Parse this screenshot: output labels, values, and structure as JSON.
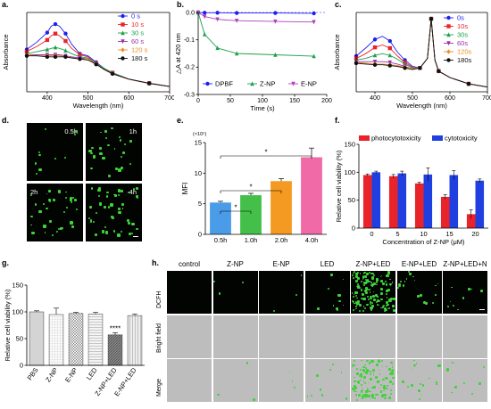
{
  "panels": {
    "a": {
      "letter": "a.",
      "chart_data": {
        "type": "line",
        "xlabel": "Wavelength (nm)",
        "ylabel": "Absorbance",
        "xlim": [
          350,
          700
        ],
        "xticks": [
          400,
          500,
          600,
          700
        ],
        "legend": "top-right",
        "series": [
          {
            "name": "0 s",
            "color": "#1f1ff0",
            "marker": "circle",
            "x": [
              350,
              375,
              400,
              410,
              420,
              430,
              445,
              460,
              480,
              500,
              520,
              540,
              560,
              600,
              650,
              700
            ],
            "y": [
              0.4,
              0.47,
              0.56,
              0.62,
              0.64,
              0.62,
              0.55,
              0.45,
              0.36,
              0.34,
              0.28,
              0.22,
              0.18,
              0.12,
              0.08,
              0.05
            ]
          },
          {
            "name": "10 s",
            "color": "#e8242a",
            "marker": "square",
            "x": [
              350,
              375,
              400,
              410,
              420,
              430,
              445,
              460,
              480,
              500,
              520,
              540,
              560,
              600,
              650,
              700
            ],
            "y": [
              0.38,
              0.43,
              0.49,
              0.53,
              0.55,
              0.53,
              0.48,
              0.41,
              0.35,
              0.33,
              0.27,
              0.22,
              0.18,
              0.12,
              0.08,
              0.05
            ]
          },
          {
            "name": "30 s",
            "color": "#19a14a",
            "marker": "triangle",
            "x": [
              350,
              375,
              400,
              410,
              420,
              430,
              445,
              460,
              480,
              500,
              520,
              540,
              560,
              600,
              650,
              700
            ],
            "y": [
              0.36,
              0.38,
              0.4,
              0.41,
              0.42,
              0.41,
              0.39,
              0.36,
              0.33,
              0.32,
              0.27,
              0.22,
              0.18,
              0.12,
              0.08,
              0.05
            ]
          },
          {
            "name": "60 s",
            "color": "#9a2fb0",
            "marker": "tri-down",
            "x": [
              350,
              375,
              400,
              410,
              420,
              430,
              445,
              460,
              480,
              500,
              520,
              540,
              560,
              600,
              650,
              700
            ],
            "y": [
              0.35,
              0.35,
              0.35,
              0.35,
              0.35,
              0.35,
              0.34,
              0.33,
              0.32,
              0.31,
              0.26,
              0.21,
              0.17,
              0.12,
              0.08,
              0.05
            ]
          },
          {
            "name": "120 s",
            "color": "#f08c1e",
            "marker": "diamond",
            "x": [
              350,
              375,
              400,
              410,
              420,
              430,
              445,
              460,
              480,
              500,
              520,
              540,
              560,
              600,
              650,
              700
            ],
            "y": [
              0.35,
              0.34,
              0.34,
              0.34,
              0.34,
              0.34,
              0.33,
              0.32,
              0.31,
              0.31,
              0.26,
              0.21,
              0.17,
              0.12,
              0.08,
              0.05
            ]
          },
          {
            "name": "180 s",
            "color": "#111111",
            "marker": "circle",
            "x": [
              350,
              375,
              400,
              410,
              420,
              430,
              445,
              460,
              480,
              500,
              520,
              540,
              560,
              600,
              650,
              700
            ],
            "y": [
              0.34,
              0.34,
              0.33,
              0.33,
              0.33,
              0.33,
              0.33,
              0.32,
              0.31,
              0.3,
              0.26,
              0.21,
              0.17,
              0.12,
              0.08,
              0.05
            ]
          }
        ]
      }
    },
    "b": {
      "letter": "b.",
      "chart_data": {
        "type": "line",
        "xlabel": "Time (s)",
        "ylabel": "△A at 420 nm",
        "xlim": [
          0,
          200
        ],
        "ylim": [
          -0.3,
          0.0
        ],
        "xticks": [
          0,
          50,
          100,
          150,
          200
        ],
        "yticks": [
          0.0,
          -0.1,
          -0.2,
          -0.3
        ],
        "legend": "bottom",
        "series": [
          {
            "name": "DPBF",
            "color": "#1f1ff0",
            "marker": "circle",
            "x": [
              0,
              10,
              30,
              60,
              120,
              180
            ],
            "y": [
              0.0,
              -0.001,
              -0.001,
              -0.002,
              -0.002,
              -0.003
            ]
          },
          {
            "name": "Z-NP",
            "color": "#19a14a",
            "marker": "triangle",
            "x": [
              0,
              10,
              30,
              60,
              120,
              180
            ],
            "y": [
              0.0,
              -0.08,
              -0.13,
              -0.15,
              -0.155,
              -0.16
            ]
          },
          {
            "name": "E-NP",
            "color": "#b03fc0",
            "marker": "tri-down",
            "x": [
              0,
              10,
              30,
              60,
              120,
              180
            ],
            "y": [
              0.0,
              -0.015,
              -0.025,
              -0.03,
              -0.033,
              -0.035
            ]
          }
        ]
      }
    },
    "c": {
      "letter": "c.",
      "chart_data": {
        "type": "line",
        "xlabel": "Wavelength (nm)",
        "ylabel": "Absorbance",
        "xlim": [
          350,
          700
        ],
        "xticks": [
          400,
          500,
          600,
          700
        ],
        "legend": "top-right",
        "series": [
          {
            "name": "0s",
            "color": "#1f1ff0",
            "marker": "circle",
            "x": [
              350,
              375,
              400,
              420,
              440,
              460,
              480,
              500,
              520,
              540,
              550,
              560,
              570,
              600,
              650,
              700
            ],
            "y": [
              0.45,
              0.55,
              0.66,
              0.7,
              0.64,
              0.5,
              0.4,
              0.32,
              0.3,
              0.42,
              0.92,
              0.4,
              0.26,
              0.18,
              0.1,
              0.06
            ]
          },
          {
            "name": "10s",
            "color": "#e8242a",
            "marker": "square",
            "x": [
              350,
              375,
              400,
              420,
              440,
              460,
              480,
              500,
              520,
              540,
              550,
              560,
              570,
              600,
              650,
              700
            ],
            "y": [
              0.42,
              0.48,
              0.56,
              0.59,
              0.55,
              0.45,
              0.37,
              0.31,
              0.3,
              0.42,
              0.92,
              0.4,
              0.26,
              0.18,
              0.1,
              0.06
            ]
          },
          {
            "name": "30s",
            "color": "#19a14a",
            "marker": "triangle",
            "x": [
              350,
              375,
              400,
              420,
              440,
              460,
              480,
              500,
              520,
              540,
              550,
              560,
              570,
              600,
              650,
              700
            ],
            "y": [
              0.4,
              0.42,
              0.46,
              0.48,
              0.46,
              0.41,
              0.35,
              0.3,
              0.3,
              0.42,
              0.92,
              0.4,
              0.26,
              0.18,
              0.1,
              0.06
            ]
          },
          {
            "name": "60s",
            "color": "#9a2fb0",
            "marker": "tri-down",
            "x": [
              350,
              375,
              400,
              420,
              440,
              460,
              480,
              500,
              520,
              540,
              550,
              560,
              570,
              600,
              650,
              700
            ],
            "y": [
              0.38,
              0.38,
              0.38,
              0.38,
              0.37,
              0.35,
              0.32,
              0.29,
              0.3,
              0.42,
              0.92,
              0.4,
              0.26,
              0.18,
              0.1,
              0.06
            ]
          },
          {
            "name": "120s",
            "color": "#f08c1e",
            "marker": "diamond",
            "x": [
              350,
              375,
              400,
              420,
              440,
              460,
              480,
              500,
              520,
              540,
              550,
              560,
              570,
              600,
              650,
              700
            ],
            "y": [
              0.37,
              0.36,
              0.35,
              0.35,
              0.34,
              0.33,
              0.31,
              0.29,
              0.3,
              0.42,
              0.92,
              0.4,
              0.26,
              0.18,
              0.1,
              0.06
            ]
          },
          {
            "name": "180s",
            "color": "#111111",
            "marker": "circle",
            "x": [
              350,
              375,
              400,
              420,
              440,
              460,
              480,
              500,
              520,
              540,
              550,
              560,
              570,
              600,
              650,
              700
            ],
            "y": [
              0.36,
              0.35,
              0.34,
              0.34,
              0.33,
              0.32,
              0.3,
              0.28,
              0.3,
              0.42,
              0.92,
              0.4,
              0.26,
              0.18,
              0.1,
              0.06
            ]
          }
        ]
      }
    },
    "d": {
      "letter": "d.",
      "images": [
        {
          "label": "0.5h",
          "dots": 10
        },
        {
          "label": "1h",
          "dots": 26
        },
        {
          "label": "2h",
          "dots": 34
        },
        {
          "label": "4h",
          "dots": 46
        }
      ]
    },
    "e": {
      "letter": "e.",
      "chart_data": {
        "type": "bar",
        "ylabel": "MFI",
        "yexp": "(×10⁵)",
        "ylim": [
          0,
          15
        ],
        "yticks": [
          0,
          5,
          10,
          15
        ],
        "categories": [
          "0.5h",
          "1.0h",
          "2.0h",
          "4.0h"
        ],
        "values": [
          5.2,
          6.4,
          8.7,
          12.6
        ],
        "errors": [
          0.2,
          0.3,
          0.4,
          1.5
        ],
        "colors": [
          "#4a9ce8",
          "#44c04a",
          "#f49a22",
          "#f06aa8"
        ],
        "significance": [
          {
            "from": 0,
            "to": 1,
            "label": "*"
          },
          {
            "from": 0,
            "to": 2,
            "label": "*"
          },
          {
            "from": 0,
            "to": 3,
            "label": "*"
          }
        ]
      }
    },
    "f": {
      "letter": "f.",
      "chart_data": {
        "type": "bar",
        "xlabel": "Concentration of Z-NP (μM)",
        "ylabel": "Relative cell viability (%)",
        "ylim": [
          0,
          150
        ],
        "yticks": [
          0,
          50,
          100,
          150
        ],
        "categories": [
          "0",
          "5",
          "10",
          "15",
          "20"
        ],
        "legend": "top",
        "series": [
          {
            "name": "photocytotoxicity",
            "color": "#e8242a",
            "values": [
              95,
              93,
              80,
              56,
              25
            ],
            "errors": [
              2,
              3,
              2,
              4,
              8
            ]
          },
          {
            "name": "cytotoxicity",
            "color": "#1f3fe0",
            "values": [
              100,
              98,
              96,
              95,
              85
            ],
            "errors": [
              2,
              4,
              12,
              8,
              3
            ]
          }
        ]
      }
    },
    "g": {
      "letter": "g.",
      "chart_data": {
        "type": "bar",
        "ylabel": "Relative cell viability (%)",
        "ylim": [
          0,
          150
        ],
        "yticks": [
          0,
          50,
          100,
          150
        ],
        "categories": [
          "PBS",
          "Z-NP",
          "E-NP",
          "LED",
          "Z-NP+LED",
          "E-NP+LED"
        ],
        "values": [
          100,
          95,
          97,
          96,
          57,
          93
        ],
        "errors": [
          2,
          12,
          2,
          3,
          4,
          3
        ],
        "patterns": [
          "plain",
          "dots",
          "hatch",
          "hlines",
          "diag",
          "vlines"
        ],
        "fills": [
          "#d4d4d4",
          "#f6f6f6",
          "#f2f2f2",
          "#f4f4f4",
          "#8a8a8a",
          "#ececec"
        ],
        "annotations": [
          {
            "index": 4,
            "label": "****"
          }
        ]
      }
    },
    "h": {
      "letter": "h.",
      "columns": [
        "control",
        "Z-NP",
        "E-NP",
        "LED",
        "Z-NP+LED",
        "E-NP+LED",
        "Z-NP+LED+N"
      ],
      "rows": [
        "DCFH",
        "Bright field",
        "Merge"
      ],
      "dcfh_density": [
        0,
        3,
        3,
        10,
        150,
        20,
        9
      ]
    }
  }
}
